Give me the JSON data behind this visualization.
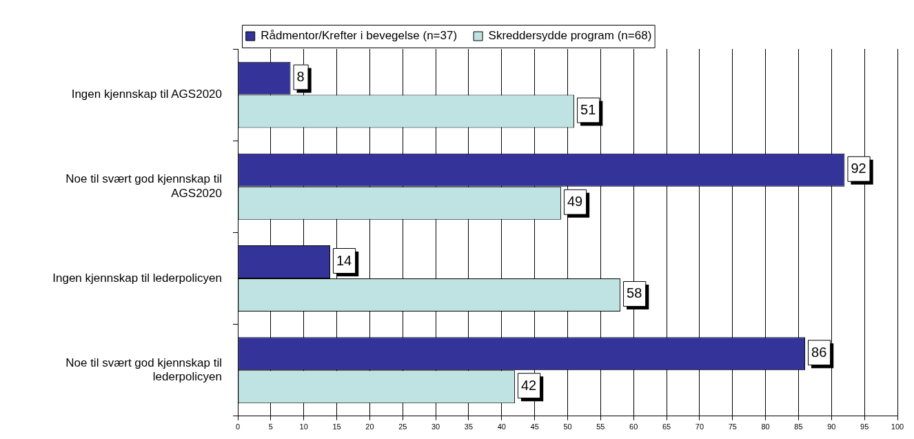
{
  "chart_data": {
    "type": "bar",
    "orientation": "horizontal",
    "categories": [
      "Ingen kjennskap til AGS2020",
      "Noe til svært god kjennskap til AGS2020",
      "Ingen kjennskap til lederpolicyen",
      "Noe til svært god kjennskap til lederpolicyen"
    ],
    "series": [
      {
        "name": "Rådmentor/Krefter i bevegelse (n=37)",
        "color": "#333399",
        "values": [
          8,
          92,
          14,
          86
        ]
      },
      {
        "name": "Skreddersydde program (n=68)",
        "color": "#bfe3e3",
        "values": [
          51,
          49,
          58,
          42
        ]
      }
    ],
    "xlim": [
      0,
      100
    ],
    "xticks": [
      0,
      5,
      10,
      15,
      20,
      25,
      30,
      35,
      40,
      45,
      50,
      55,
      60,
      65,
      70,
      75,
      80,
      85,
      90,
      95,
      100
    ],
    "grid": "x",
    "legend": "top",
    "data_labels": true
  }
}
